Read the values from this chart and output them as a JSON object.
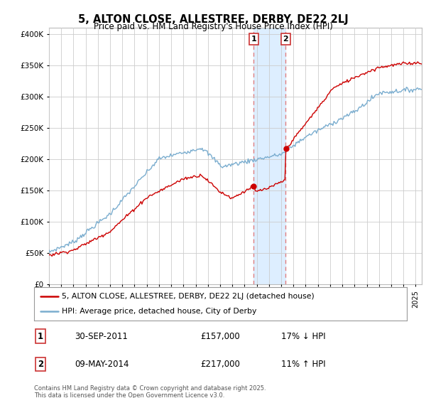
{
  "title": "5, ALTON CLOSE, ALLESTREE, DERBY, DE22 2LJ",
  "subtitle": "Price paid vs. HM Land Registry's House Price Index (HPI)",
  "legend_line1": "5, ALTON CLOSE, ALLESTREE, DERBY, DE22 2LJ (detached house)",
  "legend_line2": "HPI: Average price, detached house, City of Derby",
  "footnote": "Contains HM Land Registry data © Crown copyright and database right 2025.\nThis data is licensed under the Open Government Licence v3.0.",
  "sale1_label": "1",
  "sale1_date": "30-SEP-2011",
  "sale1_price": "£157,000",
  "sale1_hpi": "17% ↓ HPI",
  "sale2_label": "2",
  "sale2_date": "09-MAY-2014",
  "sale2_price": "£217,000",
  "sale2_hpi": "11% ↑ HPI",
  "sale1_x": 2011.75,
  "sale2_x": 2014.36,
  "property_color": "#cc0000",
  "hpi_color": "#7aadcf",
  "highlight_color": "#ddeeff",
  "vline_color": "#e08080",
  "ylim_min": 0,
  "ylim_max": 410000,
  "xlim_min": 1995,
  "xlim_max": 2025.5,
  "background_color": "#ffffff",
  "grid_color": "#cccccc"
}
